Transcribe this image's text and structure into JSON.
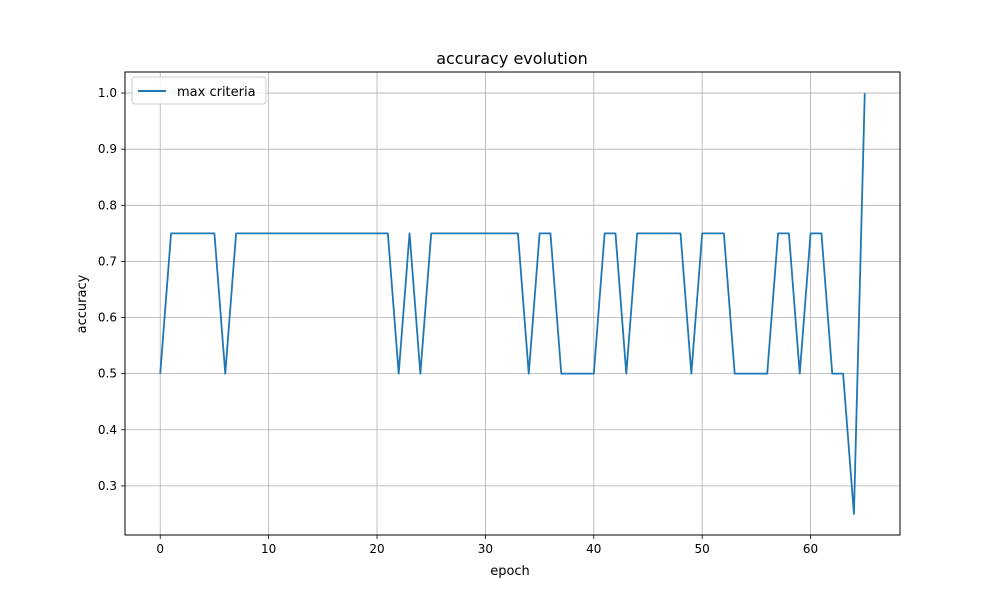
{
  "chart_data": {
    "type": "line",
    "title": "accuracy evolution",
    "xlabel": "epoch",
    "ylabel": "accuracy",
    "xlim": [
      -3.25,
      68.25
    ],
    "ylim": [
      0.2125,
      1.0375
    ],
    "xticks": [
      0,
      10,
      20,
      30,
      40,
      50,
      60
    ],
    "xtick_labels": [
      "0",
      "10",
      "20",
      "30",
      "40",
      "50",
      "60"
    ],
    "yticks": [
      0.3,
      0.4,
      0.5,
      0.6,
      0.7,
      0.8,
      0.9,
      1.0
    ],
    "ytick_labels": [
      "0.3",
      "0.4",
      "0.5",
      "0.6",
      "0.7",
      "0.8",
      "0.9",
      "1.0"
    ],
    "grid": true,
    "legend_position": "upper-left",
    "series": [
      {
        "name": "max criteria",
        "color": "#1f77b4",
        "x": [
          0,
          1,
          2,
          3,
          4,
          5,
          6,
          7,
          8,
          9,
          10,
          11,
          12,
          13,
          14,
          15,
          16,
          17,
          18,
          19,
          20,
          21,
          22,
          23,
          24,
          25,
          26,
          27,
          28,
          29,
          30,
          31,
          32,
          33,
          34,
          35,
          36,
          37,
          38,
          39,
          40,
          41,
          42,
          43,
          44,
          45,
          46,
          47,
          48,
          49,
          50,
          51,
          52,
          53,
          54,
          55,
          56,
          57,
          58,
          59,
          60,
          61,
          62,
          63,
          64,
          65
        ],
        "y": [
          0.5,
          0.75,
          0.75,
          0.75,
          0.75,
          0.75,
          0.5,
          0.75,
          0.75,
          0.75,
          0.75,
          0.75,
          0.75,
          0.75,
          0.75,
          0.75,
          0.75,
          0.75,
          0.75,
          0.75,
          0.75,
          0.75,
          0.5,
          0.75,
          0.5,
          0.75,
          0.75,
          0.75,
          0.75,
          0.75,
          0.75,
          0.75,
          0.75,
          0.75,
          0.5,
          0.75,
          0.75,
          0.5,
          0.5,
          0.5,
          0.5,
          0.75,
          0.75,
          0.5,
          0.75,
          0.75,
          0.75,
          0.75,
          0.75,
          0.5,
          0.75,
          0.75,
          0.75,
          0.5,
          0.5,
          0.5,
          0.5,
          0.75,
          0.75,
          0.5,
          0.75,
          0.75,
          0.5,
          0.5,
          0.25,
          1.0
        ]
      }
    ]
  }
}
